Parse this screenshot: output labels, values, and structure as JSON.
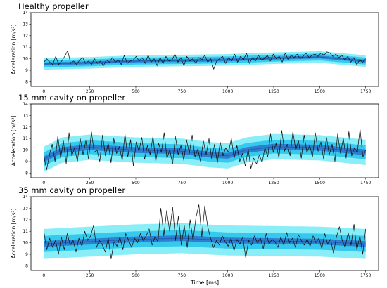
{
  "figure": {
    "xlabel": "Time [ms]"
  },
  "chart_data": [
    {
      "type": "line",
      "title": "Healthy propeller",
      "ylabel": "Acceleration [m/s²]",
      "xlim": [
        -70,
        1820
      ],
      "ylim": [
        7.6,
        14
      ],
      "xticks": [
        0,
        250,
        500,
        750,
        1000,
        1250,
        1500,
        1750
      ],
      "yticks": [
        8,
        9,
        10,
        11,
        12,
        13,
        14
      ],
      "mean_curve": [
        [
          0,
          9.55
        ],
        [
          250,
          9.65
        ],
        [
          500,
          9.8
        ],
        [
          750,
          9.85
        ],
        [
          1000,
          9.9
        ],
        [
          1250,
          10.05
        ],
        [
          1500,
          10.15
        ],
        [
          1750,
          9.8
        ]
      ],
      "band_half_widths": [
        0.5,
        0.3,
        0.12
      ],
      "series": [
        {
          "values": [
            9.7,
            10.0,
            9.7,
            9.5,
            10.2,
            9.5,
            9.8,
            10.2,
            10.7,
            9.6,
            9.8,
            9.5,
            9.9,
            10.1,
            9.6,
            9.8,
            9.5,
            10.0,
            9.6,
            9.8,
            9.4,
            9.9,
            9.7,
            10.1,
            9.7,
            9.9,
            9.5,
            10.3,
            9.6,
            9.8,
            9.9,
            10.2,
            9.8,
            10.1,
            9.6,
            10.3,
            9.7,
            10.0,
            9.4,
            10.1,
            9.6,
            10.2,
            9.8,
            9.9,
            10.4,
            9.7,
            10.1,
            9.4,
            10.2,
            9.8,
            10.0,
            9.6,
            10.1,
            9.9,
            10.3,
            9.7,
            10.0,
            9.1,
            9.8,
            10.0,
            10.2,
            9.6,
            10.1,
            9.8,
            10.4,
            9.7,
            10.2,
            9.9,
            10.5,
            9.6,
            10.1,
            9.8,
            10.3,
            9.9,
            10.0,
            10.3,
            9.8,
            10.4,
            10.0,
            10.2,
            9.7,
            10.5,
            9.9,
            10.3,
            10.1,
            10.4,
            10.0,
            10.2,
            10.5,
            10.1,
            10.3,
            10.4,
            10.2,
            10.5,
            10.3,
            10.6,
            10.5,
            10.2,
            10.4,
            10.1,
            10.3,
            9.9,
            10.2,
            9.7,
            10.1,
            9.5,
            9.9,
            9.7,
            10.0
          ]
        }
      ]
    },
    {
      "type": "line",
      "title": "15 mm cavity on propeller",
      "ylabel": "Acceleration [m/s²]",
      "xlim": [
        -70,
        1820
      ],
      "ylim": [
        7.6,
        14
      ],
      "xticks": [
        0,
        250,
        500,
        750,
        1000,
        1250,
        1500,
        1750
      ],
      "yticks": [
        8,
        9,
        10,
        11,
        12,
        13,
        14
      ],
      "mean_curve": [
        [
          0,
          9.2
        ],
        [
          100,
          10.0
        ],
        [
          250,
          10.25
        ],
        [
          500,
          10.0
        ],
        [
          750,
          9.9
        ],
        [
          900,
          9.6
        ],
        [
          1000,
          9.5
        ],
        [
          1100,
          10.0
        ],
        [
          1250,
          10.3
        ],
        [
          1500,
          10.2
        ],
        [
          1750,
          9.8
        ]
      ],
      "band_half_widths": [
        1.1,
        0.6,
        0.25
      ],
      "series": [
        {
          "values": [
            9.5,
            8.3,
            9.6,
            10.5,
            9.0,
            11.2,
            9.3,
            10.8,
            8.8,
            11.5,
            9.5,
            10.2,
            9.0,
            11.0,
            9.6,
            10.8,
            9.2,
            11.6,
            9.8,
            10.0,
            9.0,
            11.3,
            9.5,
            10.6,
            8.9,
            11.0,
            9.7,
            10.3,
            9.1,
            11.4,
            9.4,
            10.9,
            8.6,
            10.7,
            9.9,
            11.1,
            9.2,
            10.4,
            9.6,
            11.2,
            9.0,
            10.6,
            9.8,
            11.5,
            9.3,
            10.0,
            8.8,
            11.2,
            9.6,
            10.4,
            9.1,
            10.9,
            9.7,
            11.3,
            9.4,
            10.1,
            9.0,
            10.8,
            9.6,
            11.0,
            9.2,
            10.5,
            8.9,
            10.7,
            9.5,
            10.2,
            9.8,
            11.0,
            9.3,
            10.4,
            9.0,
            9.7,
            8.6,
            10.1,
            8.4,
            9.3,
            8.8,
            9.6,
            8.9,
            10.2,
            9.4,
            11.4,
            9.8,
            10.6,
            9.3,
            11.7,
            9.9,
            10.5,
            9.5,
            11.6,
            10.0,
            10.8,
            9.3,
            11.3,
            9.8,
            10.4,
            9.4,
            11.5,
            9.9,
            10.7,
            9.2,
            11.1,
            9.6,
            10.5,
            9.0,
            11.4,
            9.7,
            11.0,
            9.3,
            11.6,
            9.5,
            10.2,
            9.8,
            11.8,
            9.4,
            10.0
          ]
        }
      ]
    },
    {
      "type": "line",
      "title": "35 mm cavity on propeller",
      "ylabel": "Acceleration [m/s²]",
      "xlim": [
        -70,
        1820
      ],
      "ylim": [
        7.6,
        14
      ],
      "xticks": [
        0,
        250,
        500,
        750,
        1000,
        1250,
        1500,
        1750
      ],
      "yticks": [
        8,
        9,
        10,
        11,
        12,
        13,
        14
      ],
      "mean_curve": [
        [
          0,
          9.9
        ],
        [
          250,
          10.1
        ],
        [
          500,
          10.3
        ],
        [
          750,
          10.4
        ],
        [
          1000,
          10.2
        ],
        [
          1250,
          10.15
        ],
        [
          1500,
          10.1
        ],
        [
          1750,
          9.9
        ]
      ],
      "band_half_widths": [
        1.3,
        0.7,
        0.25
      ],
      "series": [
        {
          "values": [
            11.0,
            9.4,
            10.4,
            9.6,
            10.2,
            9.0,
            10.5,
            9.4,
            10.8,
            9.8,
            10.2,
            9.2,
            10.4,
            9.7,
            11.0,
            10.2,
            10.6,
            11.5,
            9.6,
            10.2,
            9.8,
            9.2,
            10.4,
            8.6,
            10.1,
            9.7,
            10.5,
            9.4,
            10.8,
            10.2,
            9.6,
            10.4,
            10.0,
            10.8,
            10.2,
            10.6,
            11.2,
            9.8,
            10.5,
            10.1,
            13.0,
            10.6,
            12.8,
            11.0,
            13.1,
            10.2,
            12.3,
            9.8,
            11.5,
            9.6,
            12.0,
            10.2,
            12.2,
            13.3,
            10.5,
            13.2,
            11.4,
            10.4,
            9.6,
            10.2,
            9.8,
            10.6,
            10.1,
            9.7,
            10.4,
            9.3,
            10.3,
            9.9,
            10.5,
            8.7,
            10.2,
            9.8,
            10.6,
            10.0,
            10.4,
            9.5,
            10.8,
            9.9,
            10.3,
            10.1,
            9.6,
            10.5,
            9.8,
            10.9,
            10.0,
            10.4,
            9.6,
            10.7,
            10.2,
            9.8,
            10.3,
            9.7,
            10.6,
            10.0,
            10.4,
            9.5,
            10.8,
            9.9,
            10.3,
            9.1,
            10.5,
            11.4,
            10.2,
            9.6,
            10.9,
            9.8,
            11.6,
            9.4,
            10.6,
            9.0,
            11.2
          ]
        }
      ]
    }
  ]
}
